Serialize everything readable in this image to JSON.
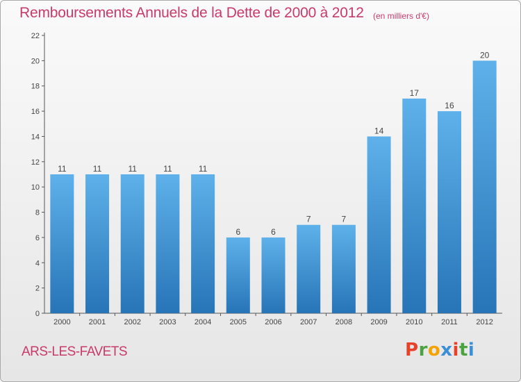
{
  "header": {
    "title": "Remboursements Annuels de la Dette de 2000 à 2012",
    "unit": "(en milliers d'€)"
  },
  "footer": {
    "town": "ARS-LES-FAVETS",
    "logo_letters": [
      "P",
      "r",
      "o",
      "x",
      "i",
      "t",
      "i"
    ],
    "logo_colors": [
      "#e8412a",
      "#4aa33f",
      "#f5a300",
      "#3c8fd6",
      "#e8412a",
      "#4aa33f",
      "#3c8fd6"
    ]
  },
  "colors": {
    "bar_top": "#5eb1ea",
    "bar_bottom": "#2774b7",
    "axis": "#555555",
    "title": "#c83a6b"
  },
  "chart_data": {
    "type": "bar",
    "title": "Remboursements Annuels de la Dette de 2000 à 2012",
    "subtitle": "(en milliers d'€)",
    "xlabel": "",
    "ylabel": "",
    "categories": [
      "2000",
      "2001",
      "2002",
      "2003",
      "2004",
      "2005",
      "2006",
      "2007",
      "2008",
      "2009",
      "2010",
      "2011",
      "2012"
    ],
    "values": [
      11,
      11,
      11,
      11,
      11,
      6,
      6,
      7,
      7,
      14,
      17,
      16,
      20
    ],
    "ylim": [
      0,
      22
    ],
    "yticks": [
      0,
      2,
      4,
      6,
      8,
      10,
      12,
      14,
      16,
      18,
      20,
      22
    ],
    "grid": false,
    "legend": "none"
  }
}
